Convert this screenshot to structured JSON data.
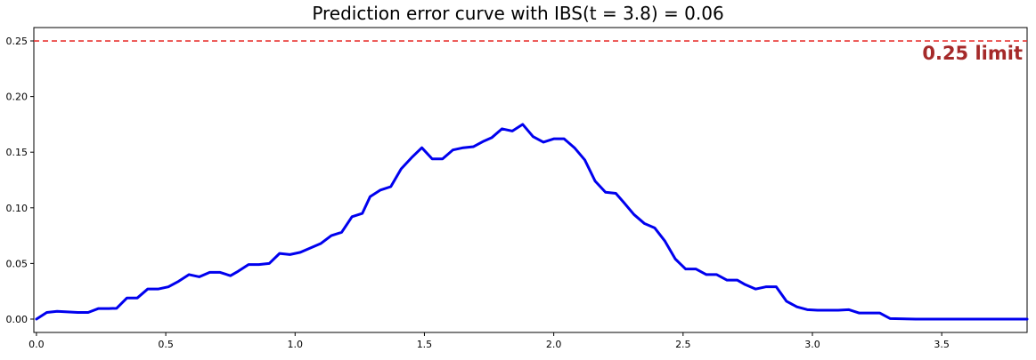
{
  "chart_data": {
    "type": "line",
    "title": "Prediction error curve with IBS(t = 3.8) = 0.06",
    "xlabel": "",
    "ylabel": "",
    "xlim": [
      -0.01,
      3.83
    ],
    "ylim": [
      -0.012,
      0.262
    ],
    "x_ticks": [
      0.0,
      0.5,
      1.0,
      1.5,
      2.0,
      2.5,
      3.0,
      3.5
    ],
    "x_tick_labels": [
      "0.0",
      "0.5",
      "1.0",
      "1.5",
      "2.0",
      "2.5",
      "3.0",
      "3.5"
    ],
    "y_ticks": [
      0.0,
      0.05,
      0.1,
      0.15,
      0.2,
      0.25
    ],
    "y_tick_labels": [
      "0.00",
      "0.05",
      "0.10",
      "0.15",
      "0.20",
      "0.25"
    ],
    "grid": false,
    "legend": "none",
    "series": [
      {
        "color": "#0000ee",
        "x": [
          0.0,
          0.04,
          0.08,
          0.12,
          0.16,
          0.2,
          0.24,
          0.28,
          0.31,
          0.35,
          0.39,
          0.43,
          0.47,
          0.51,
          0.55,
          0.59,
          0.63,
          0.67,
          0.71,
          0.75,
          0.78,
          0.82,
          0.86,
          0.9,
          0.94,
          0.98,
          1.02,
          1.06,
          1.1,
          1.14,
          1.18,
          1.22,
          1.26,
          1.29,
          1.33,
          1.37,
          1.41,
          1.45,
          1.49,
          1.53,
          1.57,
          1.61,
          1.65,
          1.69,
          1.73,
          1.76,
          1.8,
          1.84,
          1.88,
          1.92,
          1.96,
          2.0,
          2.04,
          2.08,
          2.12,
          2.16,
          2.2,
          2.24,
          2.27,
          2.31,
          2.35,
          2.39,
          2.43,
          2.47,
          2.51,
          2.55,
          2.59,
          2.63,
          2.67,
          2.71,
          2.74,
          2.78,
          2.82,
          2.86,
          2.9,
          2.94,
          2.98,
          3.02,
          3.06,
          3.1,
          3.14,
          3.18,
          3.22,
          3.26,
          3.3,
          3.4,
          3.5,
          3.6,
          3.7,
          3.83
        ],
        "y": [
          0.0,
          0.006,
          0.007,
          0.0065,
          0.006,
          0.006,
          0.0095,
          0.0095,
          0.0097,
          0.019,
          0.019,
          0.027,
          0.027,
          0.029,
          0.034,
          0.04,
          0.038,
          0.042,
          0.042,
          0.039,
          0.043,
          0.049,
          0.049,
          0.05,
          0.059,
          0.058,
          0.06,
          0.064,
          0.068,
          0.075,
          0.078,
          0.092,
          0.095,
          0.11,
          0.116,
          0.119,
          0.135,
          0.145,
          0.154,
          0.144,
          0.144,
          0.152,
          0.154,
          0.155,
          0.16,
          0.163,
          0.171,
          0.169,
          0.175,
          0.164,
          0.159,
          0.162,
          0.162,
          0.154,
          0.143,
          0.124,
          0.114,
          0.113,
          0.105,
          0.094,
          0.086,
          0.082,
          0.07,
          0.054,
          0.045,
          0.045,
          0.04,
          0.04,
          0.035,
          0.035,
          0.031,
          0.027,
          0.029,
          0.029,
          0.016,
          0.011,
          0.0085,
          0.008,
          0.008,
          0.008,
          0.0085,
          0.0055,
          0.0055,
          0.0055,
          0.0005,
          0.0,
          0.0,
          0.0,
          0.0,
          0.0
        ]
      }
    ],
    "reference_line": {
      "y": 0.25,
      "color": "#e8302f",
      "style": "dashed",
      "label": "0.25 limit",
      "label_color": "#a52a2a"
    }
  }
}
